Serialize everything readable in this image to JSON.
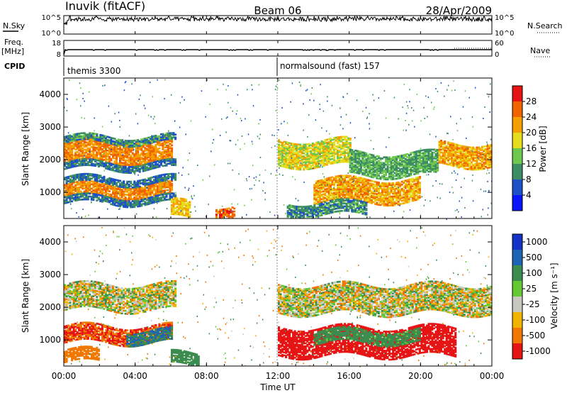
{
  "header": {
    "station": "Inuvik (fitACF)",
    "beam": "Beam 06",
    "date": "28/Apr/2009"
  },
  "noise_panel": {
    "left_label": "N.Sky",
    "right_label": "N.Search",
    "left_ticks": [
      "10^5",
      "10^0"
    ],
    "right_ticks": [
      "10^5",
      "10^0"
    ]
  },
  "freq_panel": {
    "left_label": "Freq.",
    "left_unit": "[MHz]",
    "cpid_label": "CPID",
    "right_label": "Nave",
    "left_ticks": [
      "18",
      "8"
    ],
    "right_ticks": [
      "60",
      "0"
    ],
    "cpid_segments": [
      {
        "name": "themis 3300",
        "start_h": 0,
        "end_h": 12
      },
      {
        "name": "normalsound (fast) 157",
        "start_h": 12,
        "end_h": 24
      }
    ]
  },
  "x_axis": {
    "label": "Time UT",
    "range_h": [
      0,
      24
    ],
    "ticks": [
      "00:00",
      "04:00",
      "08:00",
      "12:00",
      "16:00",
      "20:00",
      "00:00"
    ]
  },
  "power_panel": {
    "ylabel": "Slant Range [km]",
    "yticks": [
      "1000",
      "2000",
      "3000",
      "4000"
    ],
    "cbar_label": "Power [dB]",
    "cbar_ticks": [
      "4",
      "8",
      "12",
      "16",
      "20",
      "24",
      "28"
    ],
    "colors": [
      "#0a14ff",
      "#1e50c8",
      "#3c8c64",
      "#6ec850",
      "#e6dc1e",
      "#f5a000",
      "#f06400",
      "#e61414"
    ]
  },
  "velocity_panel": {
    "ylabel": "Slant Range [km]",
    "yticks": [
      "1000",
      "2000",
      "3000",
      "4000"
    ],
    "cbar_label": "Velocity [m s⁻¹]",
    "cbar_ticks": [
      "1000",
      "500",
      "100",
      "25",
      "-25",
      "-100",
      "-500",
      "-1000"
    ],
    "colors": [
      "#1432c8",
      "#1e64b4",
      "#3c8c50",
      "#64c832",
      "#c8c8c0",
      "#f0b400",
      "#f07800",
      "#e61414"
    ]
  },
  "chart_data": {
    "type": "heatmap",
    "x_range_h": [
      0,
      24
    ],
    "y_range_km": [
      200,
      4500
    ],
    "power_bands": [
      {
        "t0": 0.0,
        "t1": 6.0,
        "r0": 1900,
        "r1": 2600,
        "db": 24
      },
      {
        "t0": 0.0,
        "t1": 6.2,
        "r0": 2500,
        "r1": 2700,
        "db": 10
      },
      {
        "t0": 0.0,
        "t1": 6.2,
        "r0": 1700,
        "r1": 1900,
        "db": 8
      },
      {
        "t0": 0.0,
        "t1": 6.0,
        "r0": 850,
        "r1": 1250,
        "db": 24
      },
      {
        "t0": 0.0,
        "t1": 6.2,
        "r0": 1250,
        "r1": 1450,
        "db": 8
      },
      {
        "t0": 0.0,
        "t1": 6.2,
        "r0": 650,
        "r1": 850,
        "db": 8
      },
      {
        "t0": 6.0,
        "t1": 7.0,
        "r0": 200,
        "r1": 700,
        "db": 20
      },
      {
        "t0": 8.5,
        "t1": 9.5,
        "r0": 200,
        "r1": 600,
        "db": 26
      },
      {
        "t0": 12.0,
        "t1": 16.0,
        "r0": 1800,
        "r1": 2600,
        "db": 18
      },
      {
        "t0": 14.0,
        "t1": 20.0,
        "r0": 700,
        "r1": 1400,
        "db": 22
      },
      {
        "t0": 16.0,
        "t1": 21.0,
        "r0": 1500,
        "r1": 2200,
        "db": 12
      },
      {
        "t0": 21.0,
        "t1": 24.0,
        "r0": 1800,
        "r1": 2500,
        "db": 22
      },
      {
        "t0": 12.5,
        "t1": 17.0,
        "r0": 300,
        "r1": 700,
        "db": 10
      }
    ],
    "velocity_bands": [
      {
        "t0": 0.0,
        "t1": 6.2,
        "r0": 1900,
        "r1": 2700,
        "v": 0
      },
      {
        "t0": 0.0,
        "t1": 6.0,
        "r0": 900,
        "r1": 1400,
        "v": -300
      },
      {
        "t0": 3.5,
        "t1": 6.0,
        "r0": 900,
        "r1": 1300,
        "v": 300
      },
      {
        "t0": 0.0,
        "t1": 2.0,
        "r0": 300,
        "r1": 700,
        "v": -200
      },
      {
        "t0": 6.0,
        "t1": 7.5,
        "r0": 200,
        "r1": 600,
        "v": 200
      },
      {
        "t0": 12.0,
        "t1": 24.0,
        "r0": 1800,
        "r1": 2700,
        "v": 0
      },
      {
        "t0": 12.0,
        "t1": 22.0,
        "r0": 500,
        "r1": 1400,
        "v": -400
      },
      {
        "t0": 14.0,
        "t1": 20.0,
        "r0": 900,
        "r1": 1300,
        "v": 150
      }
    ]
  }
}
